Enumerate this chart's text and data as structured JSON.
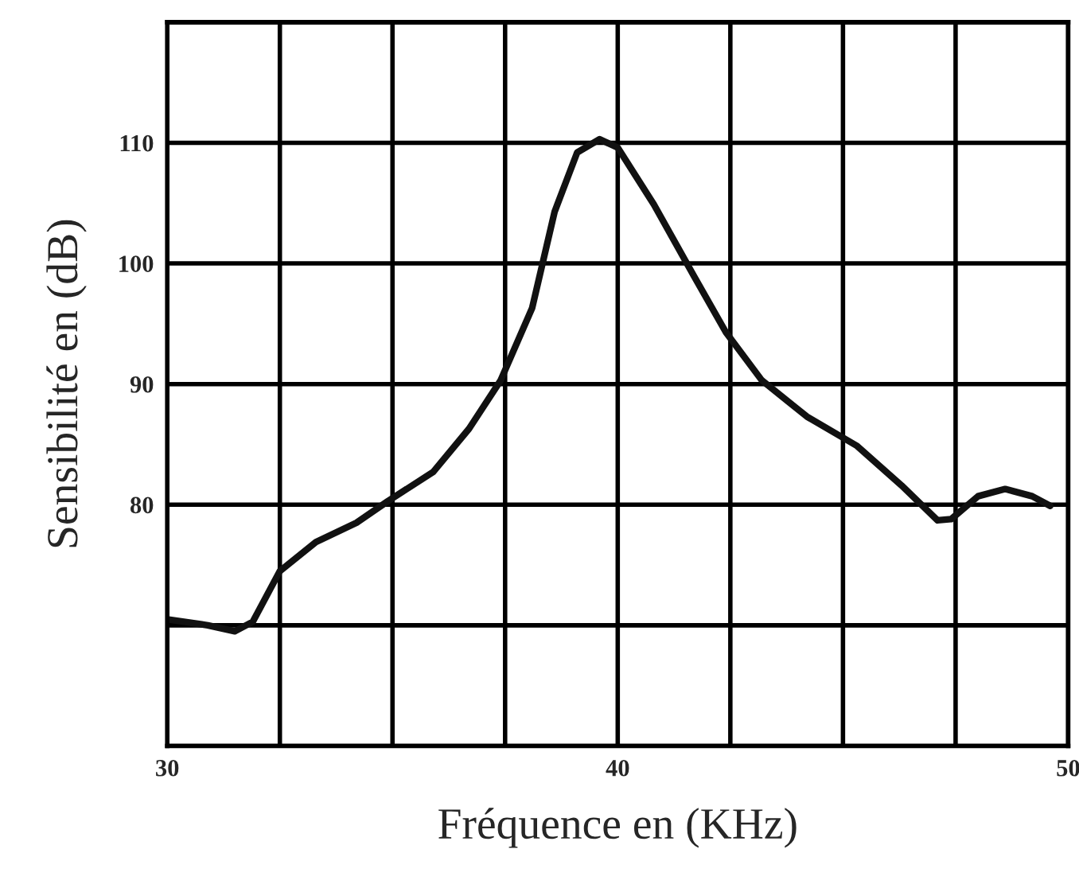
{
  "chart_data": {
    "type": "line",
    "xlabel": "Fréquence en (KHz)",
    "ylabel": "Sensibilité en (dB)",
    "xlim": [
      30,
      50
    ],
    "ylim": [
      60,
      120
    ],
    "xticks": [
      30,
      {
        "value": 32.5,
        "label": null
      },
      {
        "value": 35,
        "label": null
      },
      {
        "value": 37.5,
        "label": null
      },
      40,
      {
        "value": 42.5,
        "label": null
      },
      {
        "value": 45,
        "label": null
      },
      {
        "value": 47.5,
        "label": null
      },
      50
    ],
    "yticks": [
      {
        "value": 60,
        "label": null
      },
      {
        "value": 70,
        "label": null
      },
      80,
      90,
      100,
      110,
      {
        "value": 120,
        "label": null
      }
    ],
    "grid": true,
    "marker": "none",
    "line_style": "solid",
    "series": [
      {
        "color": "#111111",
        "x": [
          30,
          30.9,
          31.5,
          31.9,
          32.5,
          33.3,
          34.2,
          34.9,
          35.9,
          36.7,
          37.4,
          38.1,
          38.6,
          39.1,
          39.6,
          40.0,
          40.8,
          41.7,
          42.4,
          43.2,
          44.2,
          45.3,
          46.3,
          47.1,
          47.4,
          48.0,
          48.6,
          49.2,
          49.6
        ],
        "values": [
          70.5,
          70.0,
          69.5,
          70.3,
          74.5,
          76.9,
          78.5,
          80.3,
          82.7,
          86.3,
          90.3,
          96.3,
          104.3,
          109.2,
          110.3,
          109.6,
          104.9,
          98.9,
          94.3,
          90.3,
          87.3,
          84.9,
          81.6,
          78.7,
          78.8,
          80.7,
          81.3,
          80.7,
          79.9
        ]
      }
    ]
  }
}
